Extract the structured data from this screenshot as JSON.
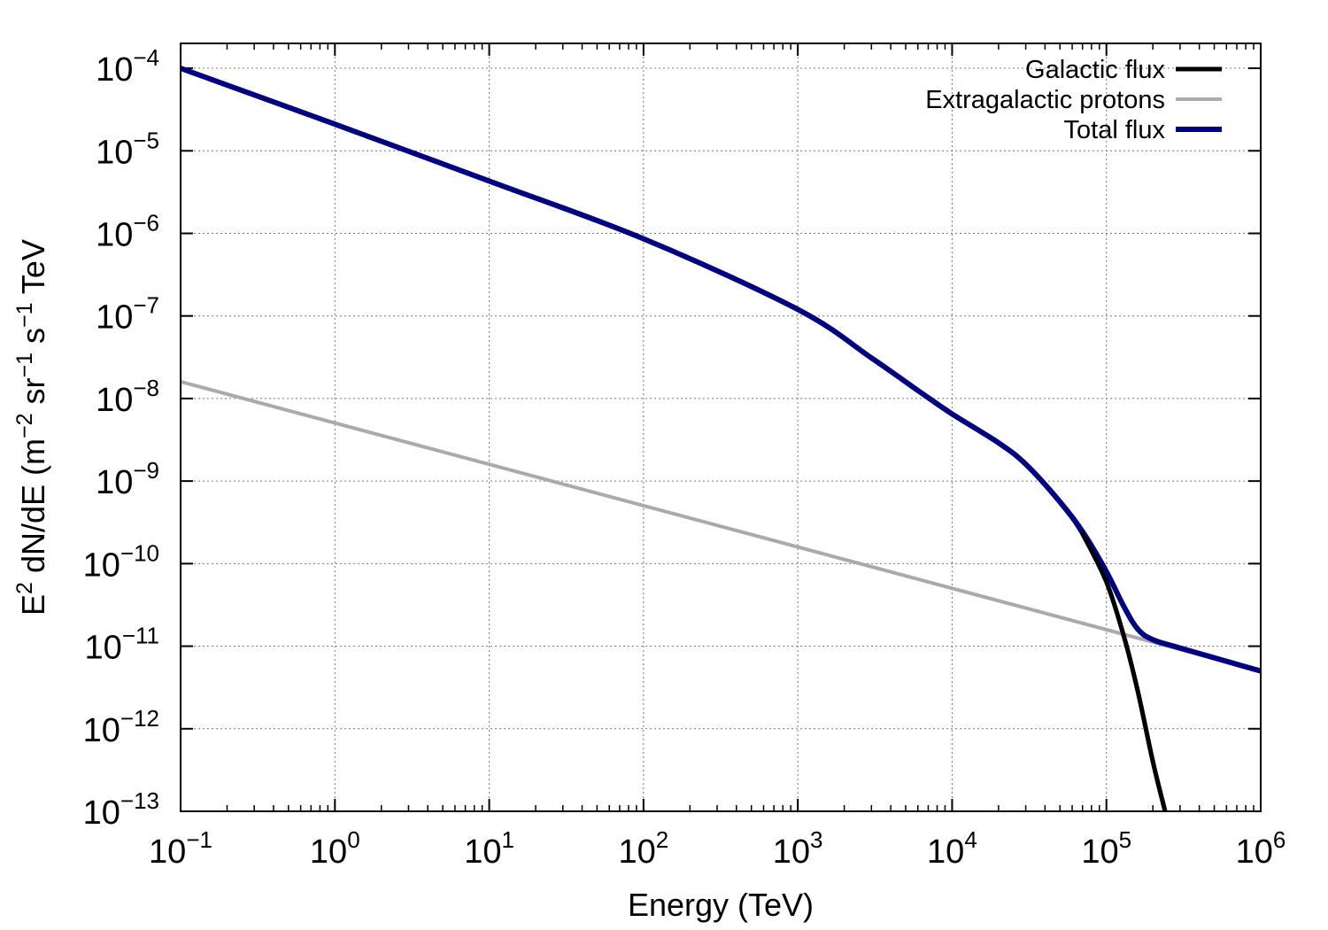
{
  "chart_data": {
    "type": "line",
    "xscale": "log",
    "yscale": "log",
    "xlim": [
      0.1,
      1000000
    ],
    "ylim": [
      1e-13,
      0.0002
    ],
    "grid": true,
    "legend_position": "top-right",
    "xlabel": "Energy (TeV)",
    "ylabel": {
      "parts": [
        {
          "text": "E",
          "sup": false
        },
        {
          "text": "2",
          "sup": true
        },
        {
          "text": " dN/dE  (m",
          "sup": false
        },
        {
          "text": "−2",
          "sup": true
        },
        {
          "text": " sr",
          "sup": false
        },
        {
          "text": "−1",
          "sup": true
        },
        {
          "text": " s",
          "sup": false
        },
        {
          "text": "−1",
          "sup": true
        },
        {
          "text": " TeV",
          "sup": false
        }
      ]
    },
    "x_ticks": [
      {
        "base": "10",
        "exp": "−1",
        "value": 0.1
      },
      {
        "base": "10",
        "exp": "0",
        "value": 1
      },
      {
        "base": "10",
        "exp": "1",
        "value": 10
      },
      {
        "base": "10",
        "exp": "2",
        "value": 100
      },
      {
        "base": "10",
        "exp": "3",
        "value": 1000
      },
      {
        "base": "10",
        "exp": "4",
        "value": 10000
      },
      {
        "base": "10",
        "exp": "5",
        "value": 100000
      },
      {
        "base": "10",
        "exp": "6",
        "value": 1000000
      }
    ],
    "y_ticks": [
      {
        "base": "10",
        "exp": "−4",
        "value": 0.0001
      },
      {
        "base": "10",
        "exp": "−5",
        "value": 1e-05
      },
      {
        "base": "10",
        "exp": "−6",
        "value": 1e-06
      },
      {
        "base": "10",
        "exp": "−7",
        "value": 1e-07
      },
      {
        "base": "10",
        "exp": "−8",
        "value": 1e-08
      },
      {
        "base": "10",
        "exp": "−9",
        "value": 1e-09
      },
      {
        "base": "10",
        "exp": "−10",
        "value": 1e-10
      },
      {
        "base": "10",
        "exp": "−11",
        "value": 1e-11
      },
      {
        "base": "10",
        "exp": "−12",
        "value": 1e-12
      },
      {
        "base": "10",
        "exp": "−13",
        "value": 1e-13
      }
    ],
    "series": [
      {
        "name": "Galactic flux",
        "color": "#000000",
        "x": [
          0.1,
          1,
          10,
          100,
          1000,
          3000,
          6000,
          10000,
          20000,
          30000,
          50000,
          70000,
          100000,
          130000,
          160000,
          200000,
          240000
        ],
        "y": [
          0.0001,
          2.1e-05,
          4.3e-06,
          8.6e-07,
          1.2e-07,
          3.1e-08,
          1.25e-08,
          6.5e-09,
          2.9e-09,
          1.6e-09,
          5.5e-10,
          2.3e-10,
          6e-11,
          1.3e-11,
          2.8e-12,
          4e-13,
          1e-13
        ]
      },
      {
        "name": "Extragalactic protons",
        "color": "#aaaaaa",
        "x": [
          0.1,
          1000000
        ],
        "y": [
          1.6e-08,
          5e-12
        ]
      },
      {
        "name": "Total flux",
        "color": "#000080",
        "x": [
          0.1,
          1,
          10,
          100,
          1000,
          3000,
          6000,
          10000,
          20000,
          30000,
          50000,
          70000,
          100000,
          130000,
          160000,
          200000,
          300000,
          1000000
        ],
        "y": [
          0.0001,
          2.1e-05,
          4.3e-06,
          8.6e-07,
          1.2e-07,
          3.1e-08,
          1.25e-08,
          6.5e-09,
          2.9e-09,
          1.6e-09,
          5.6e-10,
          2.45e-10,
          8e-11,
          3e-11,
          1.6e-11,
          1.2e-11,
          9.5e-12,
          5e-12
        ]
      }
    ]
  }
}
